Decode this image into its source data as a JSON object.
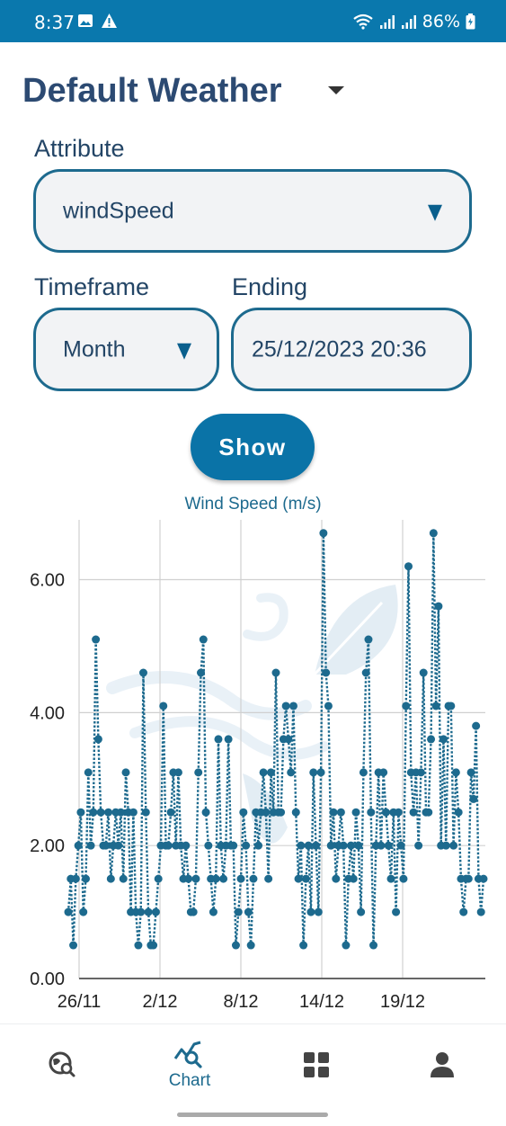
{
  "status_bar": {
    "time": "8:37",
    "battery": "86%",
    "icons": [
      "gallery-icon",
      "alert-icon",
      "wifi-icon",
      "signal-icon",
      "signal-icon",
      "battery-icon"
    ]
  },
  "header": {
    "title": "Default Weather"
  },
  "attribute": {
    "label": "Attribute",
    "value": "windSpeed"
  },
  "timeframe": {
    "label": "Timeframe",
    "value": "Month"
  },
  "ending": {
    "label": "Ending",
    "value": "25/12/2023 20:36"
  },
  "show_button": {
    "label": "Show"
  },
  "chart_data": {
    "type": "line",
    "title": "Wind Speed (m/s)",
    "xlabel": "",
    "ylabel": "",
    "ylim": [
      0,
      6.9
    ],
    "y_ticks": [
      "0.00",
      "2.00",
      "4.00",
      "6.00"
    ],
    "x_ticks": [
      "26/11",
      "2/12",
      "8/12",
      "14/12",
      "19/12"
    ],
    "grid": true,
    "style": "dotted",
    "color": "#1d6a8e",
    "series": [
      {
        "values": [
          1.0,
          1.5,
          0.5,
          1.5,
          2.0,
          2.5,
          1.0,
          1.5,
          3.1,
          2.0,
          2.5,
          5.1,
          3.6,
          2.5,
          2.0,
          2.0,
          2.5,
          1.5,
          2.0,
          2.5,
          2.0,
          2.5,
          1.5,
          3.1,
          2.5,
          1.0,
          2.5,
          1.0,
          0.5,
          1.0,
          4.6,
          2.5,
          1.0,
          0.5,
          0.5,
          1.0,
          1.5,
          2.0,
          4.1,
          2.0,
          2.0,
          2.5,
          3.1,
          2.0,
          3.1,
          2.0,
          1.5,
          2.0,
          1.5,
          1.0,
          1.0,
          1.5,
          3.1,
          4.6,
          5.1,
          2.5,
          2.0,
          1.5,
          1.0,
          1.5,
          3.6,
          2.0,
          1.5,
          2.0,
          3.6,
          2.0,
          2.0,
          0.5,
          1.0,
          1.5,
          2.5,
          2.0,
          1.0,
          0.5,
          1.5,
          2.5,
          2.0,
          2.5,
          3.1,
          2.5,
          1.5,
          3.1,
          2.5,
          4.6,
          2.5,
          2.5,
          3.6,
          4.1,
          3.6,
          3.1,
          4.1,
          2.5,
          1.5,
          2.0,
          0.5,
          1.5,
          2.0,
          1.0,
          3.1,
          2.0,
          1.0,
          3.1,
          6.7,
          4.6,
          4.1,
          2.0,
          2.5,
          1.5,
          2.0,
          2.5,
          2.0,
          0.5,
          1.5,
          2.0,
          1.5,
          2.5,
          2.0,
          1.0,
          3.1,
          4.6,
          5.1,
          2.5,
          0.5,
          2.0,
          3.1,
          2.0,
          3.1,
          2.5,
          2.0,
          1.5,
          2.5,
          1.0,
          2.5,
          2.0,
          1.5,
          4.1,
          6.2,
          3.1,
          2.5,
          3.1,
          2.0,
          3.1,
          4.6,
          2.5,
          2.5,
          3.6,
          6.7,
          4.1,
          5.6,
          2.0,
          3.6,
          2.0,
          4.1,
          4.1,
          2.0,
          3.1,
          2.5,
          1.5,
          1.0,
          1.5,
          1.5,
          3.1,
          2.7,
          3.8,
          1.5,
          1.0,
          1.5
        ]
      }
    ]
  },
  "bottom_nav": {
    "items": [
      {
        "name": "explore",
        "label": "",
        "icon": "globe-search-icon",
        "active": false
      },
      {
        "name": "chart",
        "label": "Chart",
        "icon": "chart-search-icon",
        "active": true
      },
      {
        "name": "dashboard",
        "label": "",
        "icon": "grid-icon",
        "active": false
      },
      {
        "name": "profile",
        "label": "",
        "icon": "person-icon",
        "active": false
      }
    ]
  }
}
